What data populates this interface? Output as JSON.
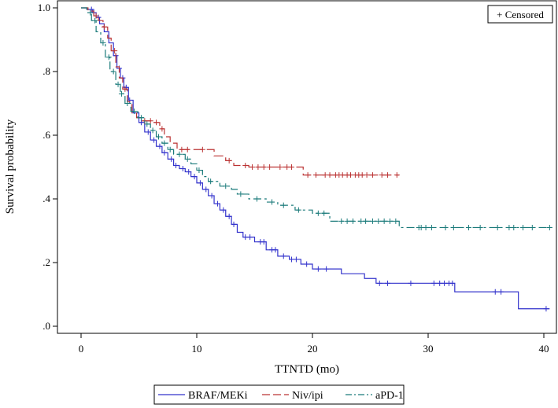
{
  "chart_data": {
    "type": "line",
    "subtype": "kaplan-meier-step",
    "title": "",
    "xlabel": "TTNTD (mo)",
    "ylabel": "Survival probability",
    "xlim": [
      -2,
      41
    ],
    "ylim": [
      -0.035,
      1.0
    ],
    "x_ticks": [
      0,
      10,
      20,
      30,
      40
    ],
    "x_tick_labels": [
      "0",
      "10",
      "20",
      "30",
      "40"
    ],
    "y_ticks": [
      0.0,
      0.2,
      0.4,
      0.6,
      0.8,
      1.0
    ],
    "y_tick_labels": [
      ".0",
      ".2",
      ".4",
      ".6",
      ".8",
      "1.0"
    ],
    "censor_legend": "+ Censored",
    "legend_position": "bottom-center",
    "series": [
      {
        "name": "BRAF/MEKi",
        "color": "#3333cc",
        "dash": "solid",
        "steps": [
          [
            0,
            1.0
          ],
          [
            0.5,
            0.995
          ],
          [
            1.0,
            0.985
          ],
          [
            1.3,
            0.97
          ],
          [
            1.6,
            0.95
          ],
          [
            2.0,
            0.925
          ],
          [
            2.4,
            0.89
          ],
          [
            2.8,
            0.85
          ],
          [
            3.1,
            0.81
          ],
          [
            3.4,
            0.78
          ],
          [
            3.7,
            0.75
          ],
          [
            4.1,
            0.71
          ],
          [
            4.5,
            0.67
          ],
          [
            5.0,
            0.64
          ],
          [
            5.5,
            0.61
          ],
          [
            6.0,
            0.585
          ],
          [
            6.5,
            0.565
          ],
          [
            7.0,
            0.545
          ],
          [
            7.5,
            0.525
          ],
          [
            8.0,
            0.505
          ],
          [
            8.5,
            0.495
          ],
          [
            9.0,
            0.485
          ],
          [
            9.5,
            0.47
          ],
          [
            10.0,
            0.45
          ],
          [
            10.5,
            0.43
          ],
          [
            11.0,
            0.41
          ],
          [
            11.5,
            0.385
          ],
          [
            12.0,
            0.365
          ],
          [
            12.5,
            0.345
          ],
          [
            13.0,
            0.32
          ],
          [
            13.5,
            0.295
          ],
          [
            14.0,
            0.28
          ],
          [
            15.0,
            0.265
          ],
          [
            16.0,
            0.24
          ],
          [
            17.0,
            0.22
          ],
          [
            18.0,
            0.21
          ],
          [
            19.0,
            0.195
          ],
          [
            20.0,
            0.18
          ],
          [
            22.5,
            0.165
          ],
          [
            24.5,
            0.15
          ],
          [
            25.5,
            0.135
          ],
          [
            32.3,
            0.108
          ],
          [
            37.8,
            0.055
          ],
          [
            40.5,
            0.055
          ]
        ],
        "censor_times": [
          0.9,
          1.1,
          1.5,
          3.0,
          3.3,
          3.6,
          3.9,
          4.2,
          5.2,
          5.8,
          6.3,
          6.8,
          7.2,
          7.8,
          8.2,
          8.8,
          9.3,
          9.8,
          10.3,
          10.8,
          11.3,
          11.8,
          12.3,
          12.8,
          13.2,
          14.2,
          14.6,
          15.5,
          15.8,
          16.5,
          16.8,
          17.5,
          18.2,
          18.6,
          19.5,
          20.5,
          21.2,
          25.8,
          26.5,
          28.5,
          30.5,
          31.0,
          31.4,
          31.8,
          32.1,
          35.8,
          36.3,
          40.2
        ]
      },
      {
        "name": "Niv/ipi",
        "color": "#bb3333",
        "dash": "long-dash",
        "steps": [
          [
            0,
            1.0
          ],
          [
            0.6,
            0.99
          ],
          [
            1.1,
            0.975
          ],
          [
            1.5,
            0.96
          ],
          [
            1.9,
            0.94
          ],
          [
            2.3,
            0.905
          ],
          [
            2.6,
            0.865
          ],
          [
            3.0,
            0.815
          ],
          [
            3.3,
            0.78
          ],
          [
            3.6,
            0.745
          ],
          [
            4.0,
            0.705
          ],
          [
            4.4,
            0.67
          ],
          [
            4.8,
            0.655
          ],
          [
            5.3,
            0.645
          ],
          [
            5.8,
            0.645
          ],
          [
            6.3,
            0.64
          ],
          [
            6.8,
            0.62
          ],
          [
            7.2,
            0.595
          ],
          [
            7.7,
            0.575
          ],
          [
            8.3,
            0.555
          ],
          [
            9.5,
            0.555
          ],
          [
            11.5,
            0.535
          ],
          [
            12.5,
            0.52
          ],
          [
            13.2,
            0.505
          ],
          [
            14.5,
            0.5
          ],
          [
            19.2,
            0.475
          ],
          [
            27.5,
            0.475
          ]
        ],
        "censor_times": [
          1.3,
          2.0,
          2.9,
          3.8,
          5.5,
          6.0,
          6.5,
          7.0,
          8.7,
          9.2,
          10.5,
          12.8,
          14.2,
          14.8,
          15.3,
          15.8,
          16.3,
          17.2,
          17.8,
          18.2,
          19.6,
          20.3,
          21.1,
          21.5,
          22.0,
          22.3,
          22.6,
          23.0,
          23.3,
          23.7,
          24.0,
          24.3,
          24.7,
          25.2,
          26.0,
          26.5,
          27.3
        ]
      },
      {
        "name": "aPD-1",
        "color": "#1a7a7a",
        "dash": "dash-dot",
        "steps": [
          [
            0,
            1.0
          ],
          [
            0.5,
            0.985
          ],
          [
            0.9,
            0.96
          ],
          [
            1.3,
            0.925
          ],
          [
            1.7,
            0.89
          ],
          [
            2.1,
            0.845
          ],
          [
            2.5,
            0.8
          ],
          [
            3.0,
            0.76
          ],
          [
            3.4,
            0.73
          ],
          [
            3.8,
            0.7
          ],
          [
            4.3,
            0.675
          ],
          [
            4.9,
            0.655
          ],
          [
            5.5,
            0.635
          ],
          [
            6.0,
            0.615
          ],
          [
            6.5,
            0.595
          ],
          [
            7.0,
            0.575
          ],
          [
            7.5,
            0.555
          ],
          [
            8.0,
            0.54
          ],
          [
            9.0,
            0.525
          ],
          [
            9.5,
            0.51
          ],
          [
            10.0,
            0.49
          ],
          [
            10.5,
            0.47
          ],
          [
            11.0,
            0.455
          ],
          [
            12.0,
            0.44
          ],
          [
            13.0,
            0.43
          ],
          [
            13.5,
            0.415
          ],
          [
            14.5,
            0.4
          ],
          [
            16.0,
            0.39
          ],
          [
            17.0,
            0.38
          ],
          [
            18.5,
            0.365
          ],
          [
            20.0,
            0.355
          ],
          [
            21.5,
            0.33
          ],
          [
            25.0,
            0.33
          ],
          [
            27.5,
            0.31
          ],
          [
            40.8,
            0.31
          ]
        ],
        "censor_times": [
          0.8,
          1.2,
          1.9,
          2.4,
          2.8,
          3.2,
          3.5,
          4.0,
          4.6,
          5.2,
          5.7,
          6.2,
          6.7,
          7.2,
          7.7,
          8.5,
          9.2,
          10.2,
          11.2,
          12.5,
          13.8,
          15.2,
          16.5,
          17.5,
          18.8,
          20.5,
          21.0,
          22.5,
          23.0,
          23.5,
          24.2,
          24.6,
          25.2,
          25.7,
          26.2,
          26.7,
          27.2,
          29.2,
          29.4,
          29.8,
          30.3,
          31.5,
          32.2,
          33.5,
          34.5,
          36.0,
          37.0,
          37.4,
          38.2,
          39.0,
          40.5
        ]
      }
    ]
  }
}
